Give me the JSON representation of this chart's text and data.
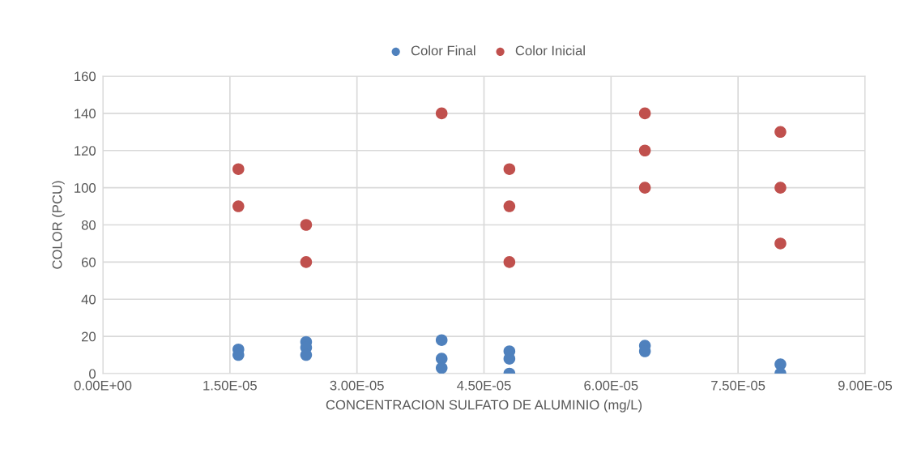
{
  "chart_data": {
    "type": "scatter",
    "xlabel": "CONCENTRACION SULFATO DE ALUMINIO (mg/L)",
    "ylabel": "COLOR (PCU)",
    "series": [
      {
        "name": "Color Final",
        "color": "#4f81bd",
        "x": [
          1.6e-05,
          1.6e-05,
          2.4e-05,
          2.4e-05,
          2.4e-05,
          4e-05,
          4e-05,
          4e-05,
          4.8e-05,
          4.8e-05,
          4.8e-05,
          6.4e-05,
          6.4e-05,
          8e-05,
          8e-05
        ],
        "values": [
          13,
          10,
          17,
          14,
          10,
          18,
          8,
          3,
          12,
          8,
          0,
          15,
          12,
          5,
          0
        ]
      },
      {
        "name": "Color Inicial",
        "color": "#c0504d",
        "x": [
          1.6e-05,
          1.6e-05,
          2.4e-05,
          2.4e-05,
          4e-05,
          4.8e-05,
          4.8e-05,
          4.8e-05,
          6.4e-05,
          6.4e-05,
          6.4e-05,
          8e-05,
          8e-05,
          8e-05
        ],
        "values": [
          110,
          90,
          80,
          60,
          140,
          110,
          90,
          60,
          140,
          120,
          100,
          130,
          100,
          70
        ]
      }
    ],
    "xlim": [
      0,
      9e-05
    ],
    "xticks": [
      {
        "value": 0,
        "label": "0.00E+00"
      },
      {
        "value": 1.5e-05,
        "label": "1.50E-05"
      },
      {
        "value": 3e-05,
        "label": "3.00E-05"
      },
      {
        "value": 4.5e-05,
        "label": "4.50E-05"
      },
      {
        "value": 6e-05,
        "label": "6.00E-05"
      },
      {
        "value": 7.5e-05,
        "label": "7.50E-05"
      },
      {
        "value": 9e-05,
        "label": "9.00E-05"
      }
    ],
    "ylim": [
      0,
      160
    ],
    "yticks": [
      0,
      20,
      40,
      60,
      80,
      100,
      120,
      140,
      160
    ],
    "grid": true,
    "legend": "top",
    "marker": "circle"
  }
}
